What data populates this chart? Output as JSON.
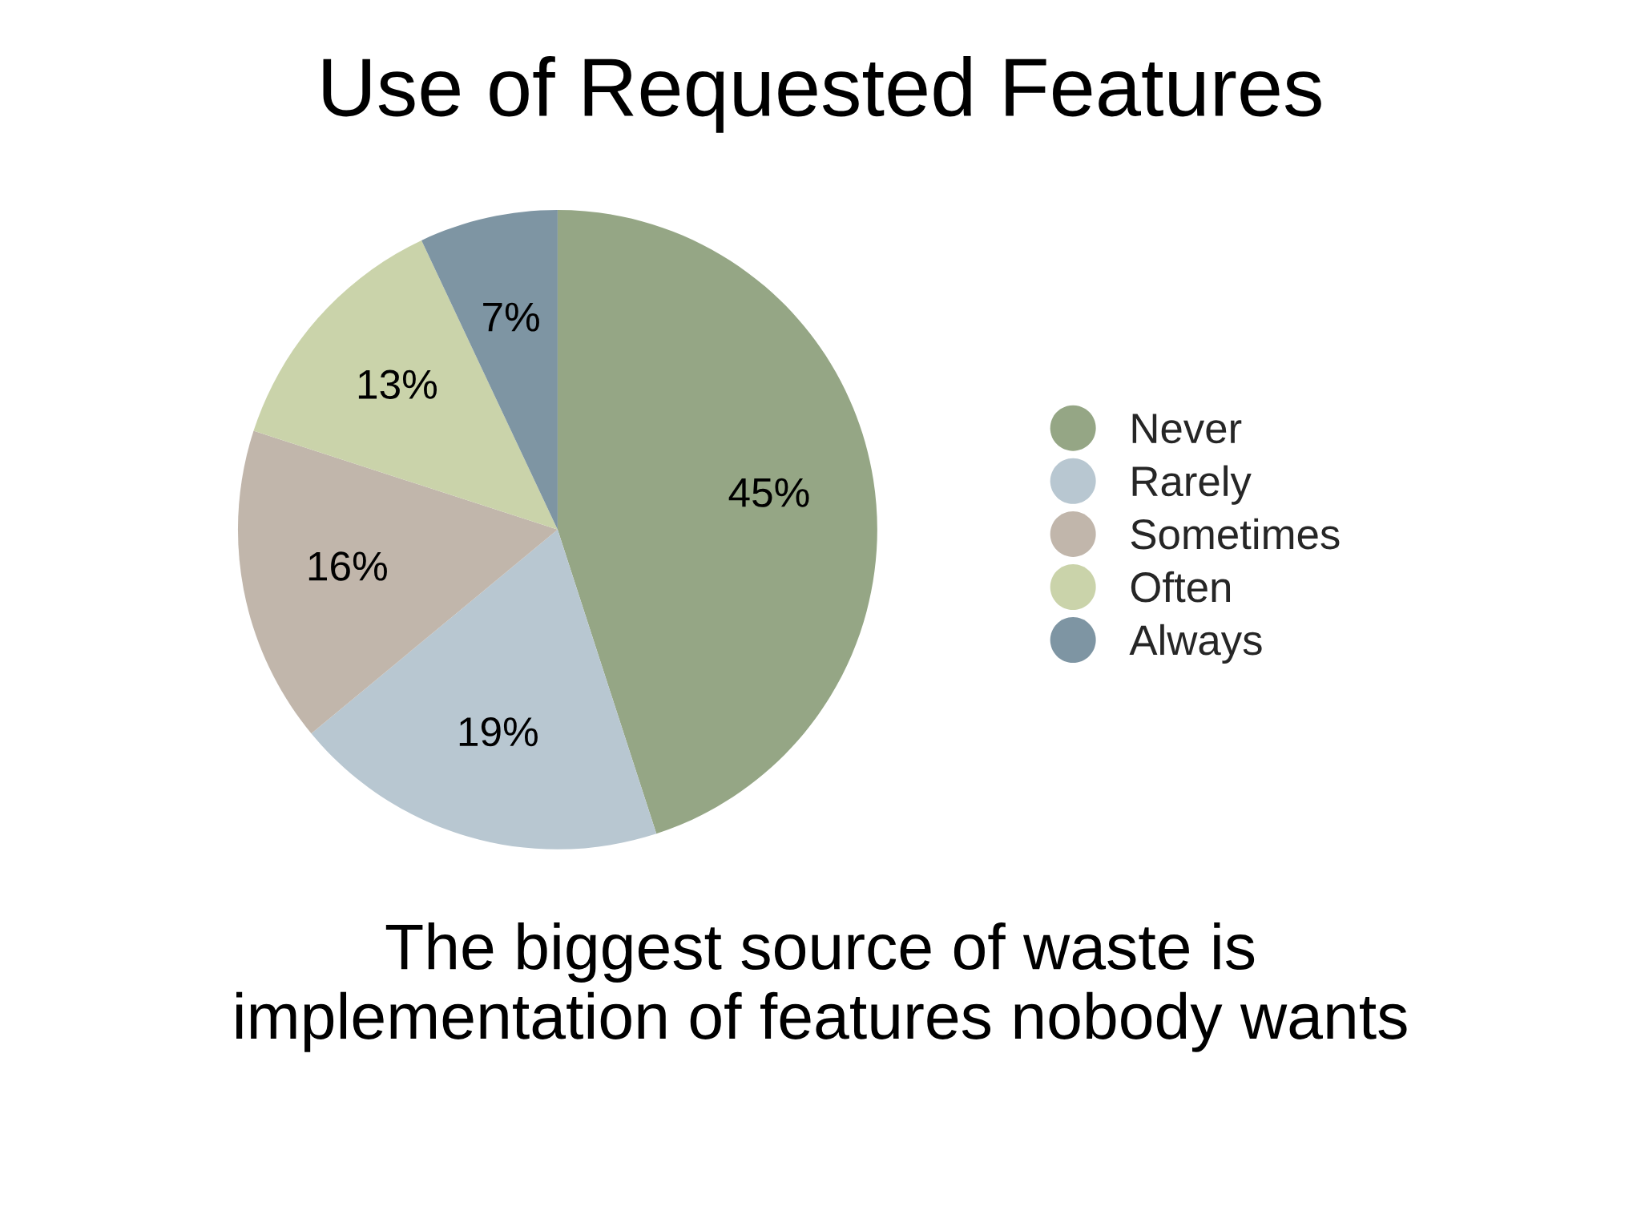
{
  "chart_data": {
    "type": "pie",
    "title": "Use of Requested Features",
    "categories": [
      "Never",
      "Rarely",
      "Sometimes",
      "Often",
      "Always"
    ],
    "values": [
      45,
      19,
      16,
      13,
      7
    ],
    "colors": [
      "#95a685",
      "#b8c7d1",
      "#c1b6ab",
      "#cad3aa",
      "#7e95a3"
    ],
    "value_labels": [
      "45%",
      "19%",
      "16%",
      "13%",
      "7%"
    ],
    "legend": "right",
    "annotations": [
      "The biggest source of waste is\nimplementation of features nobody wants"
    ]
  }
}
